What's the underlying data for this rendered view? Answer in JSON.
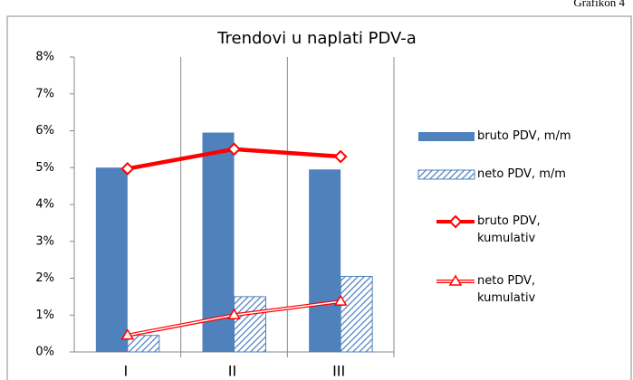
{
  "chart_data": {
    "type": "bar",
    "title": "Trendovi u naplati PDV-a",
    "annotation": "Grafikon 4",
    "categories": [
      "I",
      "II",
      "III"
    ],
    "series": [
      {
        "name": "bruto PDV, m/m",
        "type": "bar",
        "color": "#4f81bd",
        "pattern": "solid",
        "values": [
          5.0,
          5.95,
          4.95
        ]
      },
      {
        "name": "neto PDV, m/m",
        "type": "bar",
        "color": "#4f81bd",
        "pattern": "hatched",
        "values": [
          0.45,
          1.5,
          2.05
        ]
      },
      {
        "name": "bruto PDV, kumulativ",
        "type": "line",
        "color": "#ff0000",
        "marker": "diamond",
        "values": [
          4.97,
          5.5,
          5.3
        ]
      },
      {
        "name": "neto PDV, kumulativ",
        "type": "line",
        "color": "#ff0000",
        "marker": "triangle",
        "values": [
          0.45,
          1.0,
          1.37
        ]
      }
    ],
    "ylim": [
      0,
      8
    ],
    "yticks": [
      {
        "value": 0,
        "label": "0%"
      },
      {
        "value": 1,
        "label": "1%"
      },
      {
        "value": 2,
        "label": "2%"
      },
      {
        "value": 3,
        "label": "3%"
      },
      {
        "value": 4,
        "label": "4%"
      },
      {
        "value": 5,
        "label": "5%"
      },
      {
        "value": 6,
        "label": "6%"
      },
      {
        "value": 7,
        "label": "7%"
      },
      {
        "value": 8,
        "label": "8%"
      }
    ],
    "legend": "right"
  }
}
